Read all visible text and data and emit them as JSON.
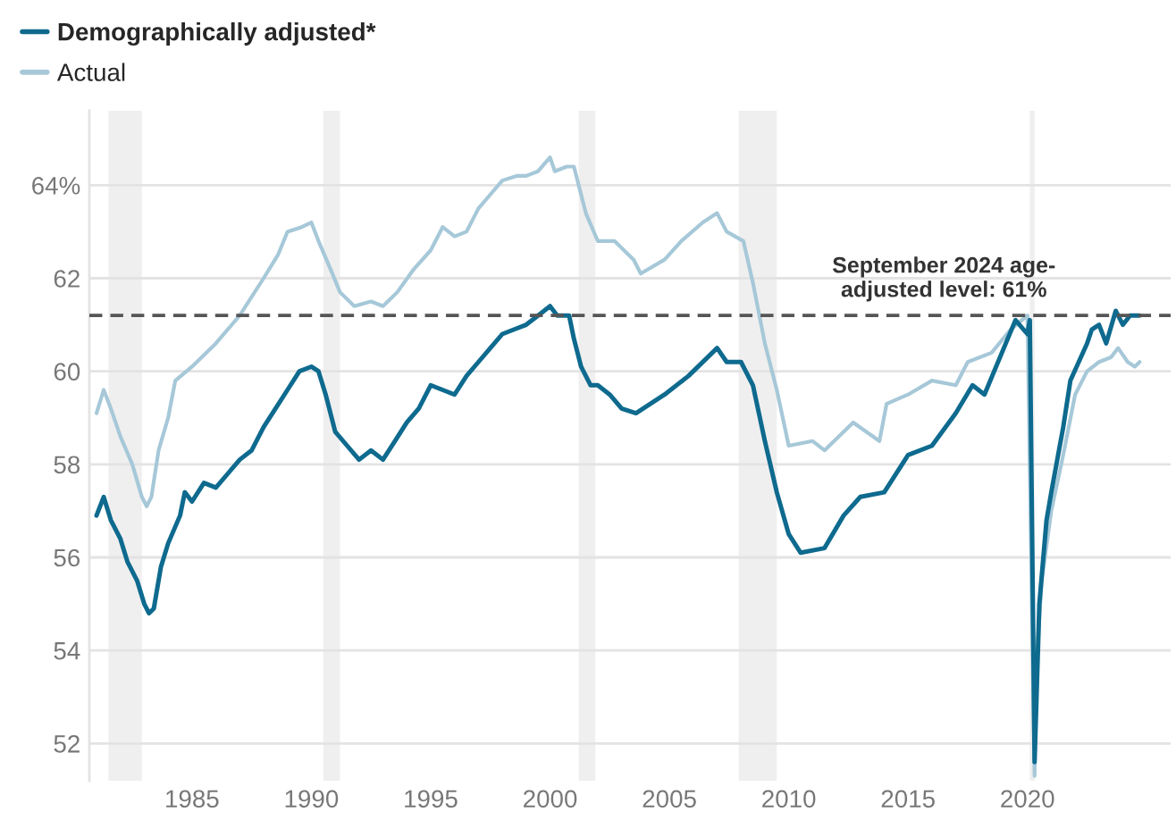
{
  "chart_data": {
    "type": "line",
    "series": [
      {
        "name": "Demographically adjusted*",
        "color": "#0e6a8e",
        "x": [
          1981.0,
          1981.3,
          1981.6,
          1982.0,
          1982.3,
          1982.7,
          1983.0,
          1983.2,
          1983.4,
          1983.7,
          1984.0,
          1984.5,
          1984.7,
          1985.0,
          1985.5,
          1986.0,
          1986.5,
          1987.0,
          1987.5,
          1988.0,
          1988.5,
          1989.0,
          1989.5,
          1990.0,
          1990.3,
          1990.6,
          1991.0,
          1991.5,
          1992.0,
          1992.5,
          1993.0,
          1993.5,
          1994.0,
          1994.5,
          1995.0,
          1995.5,
          1996.0,
          1996.5,
          1997.0,
          1997.5,
          1998.0,
          1998.5,
          1999.0,
          1999.5,
          2000.0,
          2000.3,
          2000.8,
          2001.0,
          2001.3,
          2001.7,
          2002.0,
          2002.5,
          2003.0,
          2003.6,
          2004.8,
          2005.8,
          2007.0,
          2007.4,
          2008.0,
          2008.5,
          2009.0,
          2009.5,
          2010.0,
          2010.5,
          2011.5,
          2012.3,
          2013.0,
          2014.0,
          2015.0,
          2016.0,
          2017.0,
          2017.7,
          2018.2,
          2019.5,
          2020.0,
          2020.1,
          2020.3,
          2020.5,
          2020.8,
          2021.0,
          2021.5,
          2021.8,
          2022.5,
          2022.7,
          2023.0,
          2023.3,
          2023.7,
          2024.0,
          2024.3,
          2024.7
        ],
        "values": [
          56.9,
          57.3,
          56.8,
          56.4,
          55.9,
          55.5,
          55.0,
          54.8,
          54.9,
          55.8,
          56.3,
          56.9,
          57.4,
          57.2,
          57.6,
          57.5,
          57.8,
          58.1,
          58.3,
          58.8,
          59.2,
          59.6,
          60.0,
          60.1,
          60.0,
          59.5,
          58.7,
          58.4,
          58.1,
          58.3,
          58.1,
          58.5,
          58.9,
          59.2,
          59.7,
          59.6,
          59.5,
          59.9,
          60.2,
          60.5,
          60.8,
          60.9,
          61.0,
          61.2,
          61.4,
          61.2,
          61.2,
          60.7,
          60.1,
          59.7,
          59.7,
          59.5,
          59.2,
          59.1,
          59.5,
          59.9,
          60.5,
          60.2,
          60.2,
          59.7,
          58.5,
          57.4,
          56.5,
          56.1,
          56.2,
          56.9,
          57.3,
          57.4,
          58.2,
          58.4,
          59.1,
          59.7,
          59.5,
          61.1,
          60.8,
          61.1,
          51.6,
          55.0,
          56.8,
          57.4,
          58.8,
          59.8,
          60.6,
          60.9,
          61.0,
          60.6,
          61.3,
          61.0,
          61.2,
          61.2
        ]
      },
      {
        "name": "Actual",
        "color": "#a6c8d8",
        "x": [
          1981.0,
          1981.3,
          1981.6,
          1982.0,
          1982.5,
          1982.9,
          1983.1,
          1983.3,
          1983.6,
          1984.0,
          1984.3,
          1985.0,
          1986.0,
          1987.0,
          1988.0,
          1988.6,
          1989.0,
          1989.6,
          1990.0,
          1990.3,
          1990.8,
          1991.2,
          1991.8,
          1992.5,
          1993.0,
          1993.6,
          1994.3,
          1995.0,
          1995.5,
          1996.0,
          1996.5,
          1997.0,
          1997.5,
          1998.0,
          1998.6,
          1999.0,
          1999.5,
          2000.0,
          2000.2,
          2000.7,
          2001.0,
          2001.5,
          2002.0,
          2002.7,
          2003.5,
          2003.8,
          2004.8,
          2005.5,
          2006.4,
          2007.0,
          2007.4,
          2008.1,
          2008.5,
          2009.0,
          2009.5,
          2010.0,
          2011.0,
          2011.5,
          2012.7,
          2013.8,
          2014.1,
          2015.0,
          2016.0,
          2017.0,
          2017.5,
          2018.5,
          2019.3,
          2020.0,
          2020.3,
          2020.35,
          2020.6,
          2021.0,
          2021.5,
          2022.0,
          2022.5,
          2023.0,
          2023.5,
          2023.8,
          2024.2,
          2024.5,
          2024.7
        ],
        "values": [
          59.1,
          59.6,
          59.2,
          58.6,
          58.0,
          57.3,
          57.1,
          57.3,
          58.3,
          59.0,
          59.8,
          60.1,
          60.6,
          61.2,
          62.0,
          62.5,
          63.0,
          63.1,
          63.2,
          62.8,
          62.2,
          61.7,
          61.4,
          61.5,
          61.4,
          61.7,
          62.2,
          62.6,
          63.1,
          62.9,
          63.0,
          63.5,
          63.8,
          64.1,
          64.2,
          64.2,
          64.3,
          64.6,
          64.3,
          64.4,
          64.4,
          63.4,
          62.8,
          62.8,
          62.4,
          62.1,
          62.4,
          62.8,
          63.2,
          63.4,
          63.0,
          62.8,
          61.9,
          60.6,
          59.6,
          58.4,
          58.5,
          58.3,
          58.9,
          58.5,
          59.3,
          59.5,
          59.8,
          59.7,
          60.2,
          60.4,
          60.9,
          61.2,
          51.3,
          53.5,
          55.5,
          57.0,
          58.2,
          59.5,
          60.0,
          60.2,
          60.3,
          60.5,
          60.2,
          60.1,
          60.2
        ]
      }
    ],
    "xlim": [
      1980.7,
      2026
    ],
    "xticks": [
      1985,
      1990,
      1995,
      2000,
      2005,
      2010,
      2015,
      2020
    ],
    "ylim": [
      51.2,
      65.6
    ],
    "yticks": [
      52,
      54,
      56,
      58,
      60,
      62,
      {
        "value": 64,
        "label": "64%"
      }
    ],
    "grid": "y",
    "legend": "top left",
    "bands": [
      {
        "axis": "x",
        "from": 1981.5,
        "to": 1982.9,
        "color": "#efefef"
      },
      {
        "axis": "x",
        "from": 1990.5,
        "to": 1991.2,
        "color": "#efefef"
      },
      {
        "axis": "x",
        "from": 2001.2,
        "to": 2001.9,
        "color": "#efefef"
      },
      {
        "axis": "x",
        "from": 2007.9,
        "to": 2009.5,
        "color": "#efefef"
      },
      {
        "axis": "x",
        "from": 2020.1,
        "to": 2020.3,
        "color": "#efefef"
      }
    ],
    "ref_lines": [
      {
        "axis": "y",
        "value": 61.2,
        "label": "September 2024 age-\nadjusted level: 61%",
        "color": "#555555",
        "line_style": "dashed"
      }
    ]
  }
}
